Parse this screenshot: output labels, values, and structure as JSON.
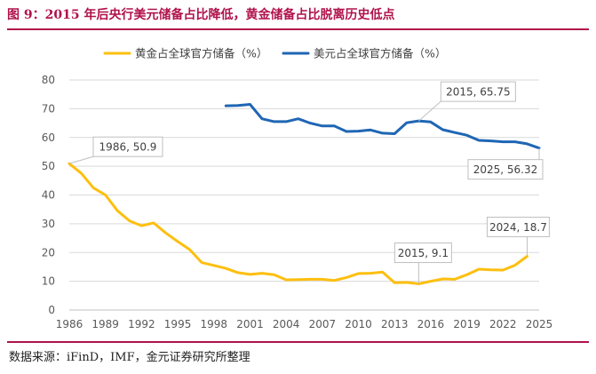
{
  "figure_title": "图 9：2015 年后央行美元储备占比降低，黄金储备占比脱离历史低点",
  "source": "数据来源：iFinD，IMF，金元证券研究所整理",
  "colors": {
    "gold": "#fdbf0f",
    "usd": "#1f66b4",
    "title": "#b0124b",
    "grid": "#d9d9d9",
    "axis": "#bfbfbf"
  },
  "chart_data": {
    "type": "line",
    "title": "",
    "xlabel": "",
    "ylabel": "",
    "xlim": [
      1986,
      2025
    ],
    "ylim": [
      0,
      80
    ],
    "yticks": [
      0,
      10,
      20,
      30,
      40,
      50,
      60,
      70,
      80
    ],
    "xticks": [
      1986,
      1989,
      1992,
      1995,
      1998,
      2001,
      2004,
      2007,
      2010,
      2013,
      2016,
      2019,
      2022,
      2025
    ],
    "grid": true,
    "legend_position": "top",
    "series": [
      {
        "name": "黄金占全球官方储备（%）",
        "color": "#fdbf0f",
        "x": [
          1986,
          1987,
          1988,
          1989,
          1990,
          1991,
          1992,
          1993,
          1994,
          1995,
          1996,
          1997,
          1998,
          1999,
          2000,
          2001,
          2002,
          2003,
          2004,
          2005,
          2006,
          2007,
          2008,
          2009,
          2010,
          2011,
          2012,
          2013,
          2014,
          2015,
          2016,
          2017,
          2018,
          2019,
          2020,
          2021,
          2022,
          2023,
          2024
        ],
        "values": [
          50.9,
          47.5,
          42.5,
          40,
          34.5,
          31,
          29.3,
          30.3,
          26.8,
          23.8,
          21,
          16.5,
          15.5,
          14.5,
          13,
          12.4,
          12.8,
          12.3,
          10.5,
          10.6,
          10.7,
          10.7,
          10.3,
          11.3,
          12.7,
          12.8,
          13.2,
          9.5,
          9.6,
          9.1,
          10,
          10.8,
          10.7,
          12.3,
          14.2,
          14,
          13.9,
          15.6,
          18.7
        ]
      },
      {
        "name": "美元占全球官方储备（%）",
        "color": "#1f66b4",
        "x": [
          1999,
          2000,
          2001,
          2002,
          2003,
          2004,
          2005,
          2006,
          2007,
          2008,
          2009,
          2010,
          2011,
          2012,
          2013,
          2014,
          2015,
          2016,
          2017,
          2018,
          2019,
          2020,
          2021,
          2022,
          2023,
          2024,
          2025
        ],
        "values": [
          71,
          71.1,
          71.5,
          66.5,
          65.5,
          65.5,
          66.5,
          65,
          64,
          64,
          62.1,
          62.2,
          62.6,
          61.5,
          61.3,
          65.1,
          65.75,
          65.4,
          62.7,
          61.7,
          60.8,
          59,
          58.8,
          58.5,
          58.5,
          57.8,
          56.32
        ]
      }
    ],
    "annotations": [
      {
        "label": "1986, 50.9",
        "series": 0,
        "x": 1986,
        "y": 50.9
      },
      {
        "label": "2015, 9.1",
        "series": 0,
        "x": 2015,
        "y": 9.1
      },
      {
        "label": "2024, 18.7",
        "series": 0,
        "x": 2024,
        "y": 18.7
      },
      {
        "label": "2015, 65.75",
        "series": 1,
        "x": 2015,
        "y": 65.75
      },
      {
        "label": "2025, 56.32",
        "series": 1,
        "x": 2025,
        "y": 56.32
      }
    ]
  }
}
